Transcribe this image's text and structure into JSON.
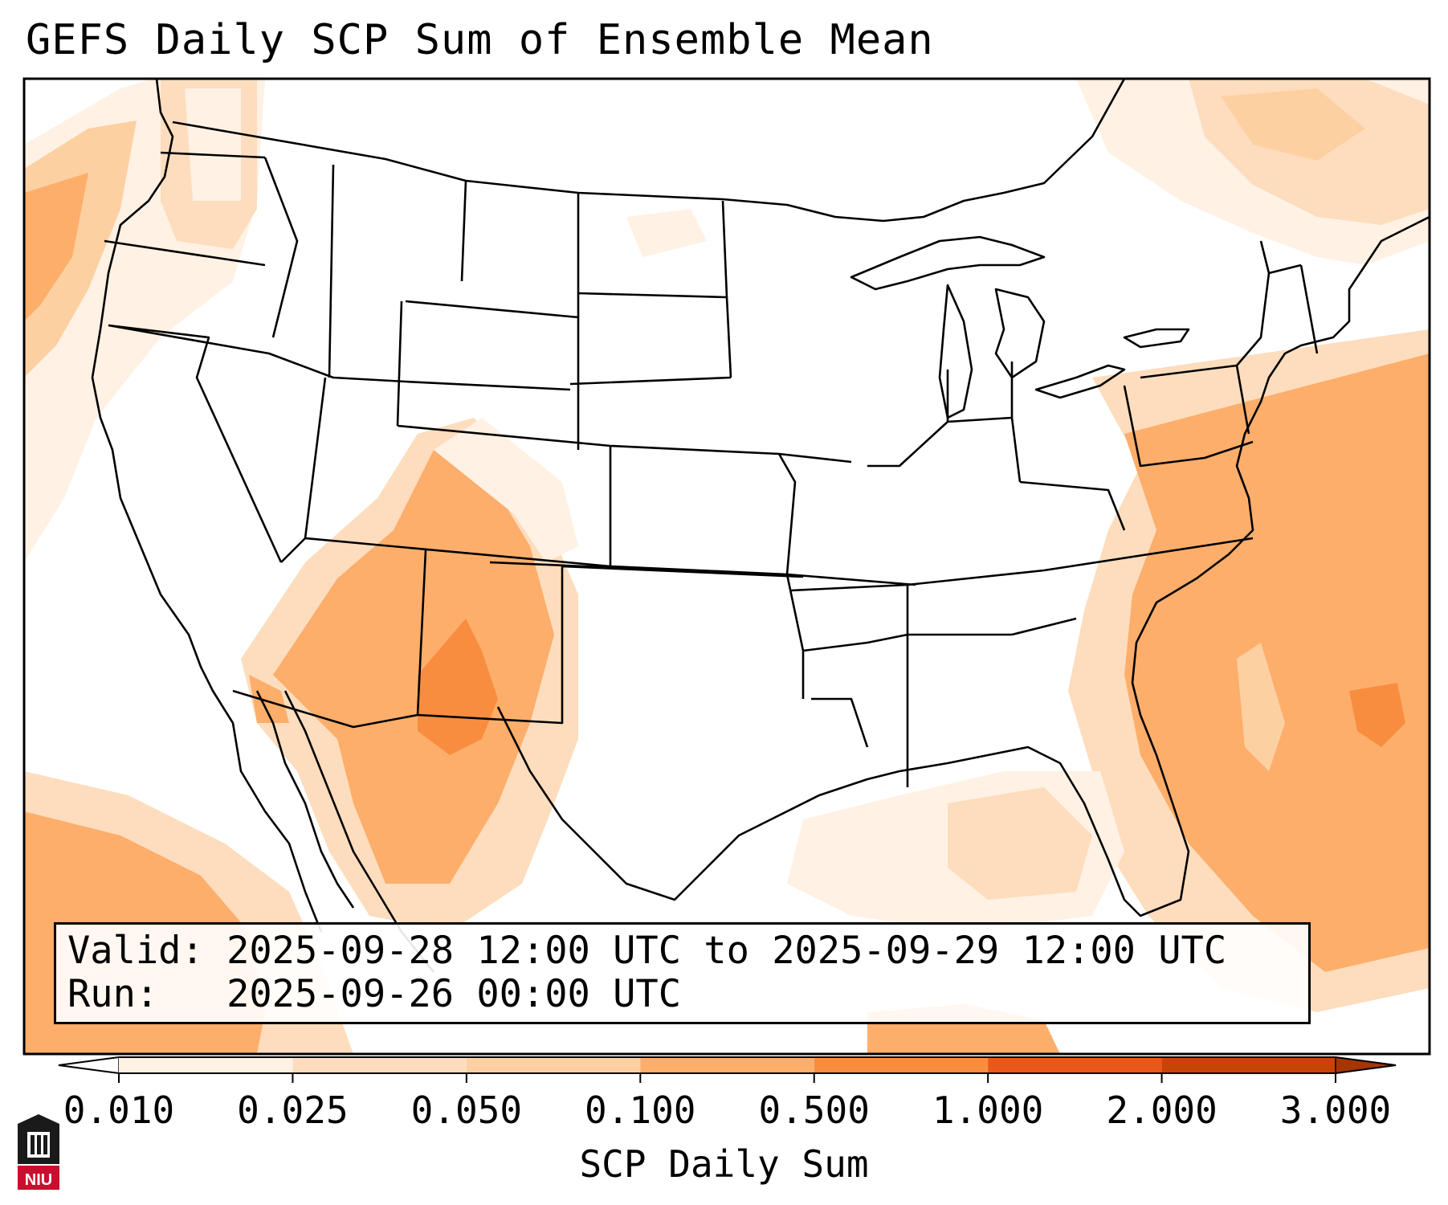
{
  "title": "GEFS Daily SCP Sum of Ensemble Mean",
  "info": {
    "valid_label": "Valid:",
    "valid_value": "2025-09-28 12:00 UTC to 2025-09-29 12:00 UTC",
    "run_label": "Run:",
    "run_value": "2025-09-26 00:00 UTC"
  },
  "colorbar": {
    "label": "SCP Daily Sum",
    "ticks": [
      "0.010",
      "0.025",
      "0.050",
      "0.100",
      "0.500",
      "1.000",
      "2.000",
      "3.000"
    ],
    "colors": [
      "#ffffff",
      "#fff1e4",
      "#fdddbd",
      "#fdd0a2",
      "#fdae6b",
      "#f98d3f",
      "#e8581a",
      "#c94206",
      "#a53603"
    ]
  },
  "logo": {
    "text": "NIU",
    "color": "#c8102e"
  }
}
